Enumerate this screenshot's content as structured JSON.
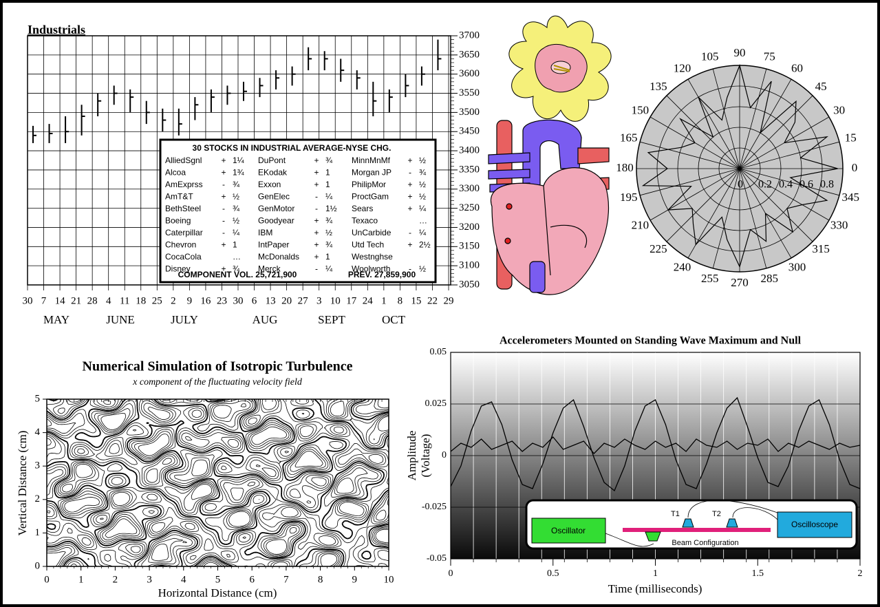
{
  "chart_data": [
    {
      "type": "stock",
      "title": "Industrials",
      "categories": [
        "30",
        "7",
        "14",
        "21",
        "28",
        "4",
        "11",
        "18",
        "25",
        "2",
        "9",
        "16",
        "23",
        "30",
        "6",
        "13",
        "20",
        "27",
        "3",
        "10",
        "17",
        "24",
        "1",
        "8",
        "15",
        "22",
        "29"
      ],
      "month_labels": [
        "MAY",
        "JUNE",
        "JULY",
        "AUG",
        "SEPT",
        "OCT"
      ],
      "high": [
        3465,
        3470,
        3490,
        3520,
        3550,
        3570,
        3560,
        3530,
        3510,
        3510,
        3540,
        3560,
        3570,
        3580,
        3590,
        3610,
        3620,
        3670,
        3660,
        3640,
        3610,
        3580,
        3560,
        3600,
        3620,
        3690,
        null
      ],
      "low": [
        3420,
        3420,
        3420,
        3440,
        3490,
        3520,
        3500,
        3470,
        3450,
        3440,
        3480,
        3500,
        3520,
        3530,
        3540,
        3560,
        3570,
        3610,
        3610,
        3580,
        3560,
        3490,
        3500,
        3540,
        3570,
        3610,
        null
      ],
      "close": [
        3440,
        3445,
        3450,
        3490,
        3530,
        3550,
        3540,
        3500,
        3480,
        3470,
        3520,
        3540,
        3550,
        3555,
        3570,
        3590,
        3600,
        3640,
        3640,
        3610,
        3590,
        3530,
        3540,
        3570,
        3600,
        3640,
        null
      ],
      "ylim": [
        3050,
        3700
      ],
      "yticks": [
        3050,
        3100,
        3150,
        3200,
        3250,
        3300,
        3350,
        3400,
        3450,
        3500,
        3550,
        3600,
        3650,
        3700
      ],
      "grid": true,
      "table": {
        "title": "30 STOCKS IN INDUSTRIAL AVERAGE-NYSE CHG.",
        "columns": [
          [
            {
              "name": "AlliedSgnl",
              "sign": "+",
              "change": "1¼"
            },
            {
              "name": "Alcoa",
              "sign": "+",
              "change": "1¾"
            },
            {
              "name": "AmExprss",
              "sign": "-",
              "change": "¾"
            },
            {
              "name": "AmT&T",
              "sign": "+",
              "change": "½"
            },
            {
              "name": "BethSteel",
              "sign": "-",
              "change": "¾"
            },
            {
              "name": "Boeing",
              "sign": "-",
              "change": "½"
            },
            {
              "name": "Caterpillar",
              "sign": "-",
              "change": "¼"
            },
            {
              "name": "Chevron",
              "sign": "+",
              "change": "1"
            },
            {
              "name": "CocaCola",
              "change": "…"
            },
            {
              "name": "Disney",
              "sign": "+",
              "change": "¾"
            }
          ],
          [
            {
              "name": "DuPont",
              "sign": "+",
              "change": "¾"
            },
            {
              "name": "EKodak",
              "sign": "+",
              "change": "1"
            },
            {
              "name": "Exxon",
              "sign": "+",
              "change": "1"
            },
            {
              "name": "GenElec",
              "sign": "-",
              "change": "¼"
            },
            {
              "name": "GenMotor",
              "sign": "-",
              "change": "1½"
            },
            {
              "name": "Goodyear",
              "sign": "+",
              "change": "¾"
            },
            {
              "name": "IBM",
              "sign": "+",
              "change": "½"
            },
            {
              "name": "IntPaper",
              "sign": "+",
              "change": "¾"
            },
            {
              "name": "McDonalds",
              "sign": "+",
              "change": "1"
            },
            {
              "name": "Merck",
              "sign": "-",
              "change": "¼"
            }
          ],
          [
            {
              "name": "MinnMnMf",
              "sign": "+",
              "change": "½"
            },
            {
              "name": "Morgan JP",
              "sign": "-",
              "change": "¾"
            },
            {
              "name": "PhilipMor",
              "sign": "+",
              "change": "½"
            },
            {
              "name": "ProctGam",
              "sign": "+",
              "change": "½"
            },
            {
              "name": "Sears",
              "sign": "+",
              "change": "¼"
            },
            {
              "name": "Texaco",
              "change": "…"
            },
            {
              "name": "UnCarbide",
              "sign": "-",
              "change": "¼"
            },
            {
              "name": "Utd Tech",
              "sign": "+",
              "change": "2½"
            },
            {
              "name": "Westnghse"
            },
            {
              "name": "Woolworth",
              "sign": "-",
              "change": "½"
            }
          ]
        ],
        "footer": [
          "COMPONENT VOL. 25,721,900",
          "PREV. 27,859,900"
        ]
      }
    },
    {
      "type": "polar",
      "thetaticks": [
        0,
        15,
        30,
        45,
        60,
        75,
        90,
        105,
        120,
        135,
        150,
        165,
        180,
        195,
        210,
        225,
        240,
        255,
        270,
        285,
        300,
        315,
        330,
        345
      ],
      "rticks": [
        0,
        0.2,
        0.4,
        0.6,
        0.8
      ],
      "rlim": [
        0,
        1
      ],
      "theta": [
        0,
        10,
        20,
        30,
        40,
        50,
        60,
        70,
        80,
        90,
        100,
        110,
        120,
        130,
        140,
        150,
        160,
        170,
        180,
        190,
        200,
        210,
        220,
        230,
        240,
        250,
        260,
        270,
        280,
        290,
        300,
        310,
        320,
        330,
        340,
        350
      ],
      "r": [
        0.95,
        0.6,
        0.9,
        0.5,
        0.7,
        0.85,
        0.4,
        0.9,
        0.6,
        1.0,
        0.7,
        0.5,
        0.8,
        0.4,
        0.75,
        0.5,
        0.6,
        0.9,
        0.7,
        0.95,
        0.5,
        0.8,
        0.6,
        0.7,
        0.85,
        0.5,
        0.7,
        0.95,
        0.6,
        0.75,
        0.5,
        0.8,
        0.6,
        0.7,
        0.9,
        0.5
      ]
    },
    {
      "type": "contour",
      "title": "Numerical Simulation of Isotropic Turbulence",
      "subtitle": "x component of the fluctuating velocity field",
      "xlabel": "Horizontal Distance (cm)",
      "ylabel": "Vertical Distance (cm)",
      "xlim": [
        0,
        10
      ],
      "ylim": [
        0,
        5
      ],
      "xticks": [
        0,
        1,
        2,
        3,
        4,
        5,
        6,
        7,
        8,
        9,
        10
      ],
      "yticks": [
        0,
        1,
        2,
        3,
        4,
        5
      ]
    },
    {
      "type": "line",
      "title": "Accelerometers Mounted on Standing Wave Maximum and Null",
      "xlabel": "Time (milliseconds)",
      "ylabel": [
        "Amplitude",
        "(Voltage)"
      ],
      "xlim": [
        0,
        2
      ],
      "ylim": [
        -0.05,
        0.05
      ],
      "xticks": [
        0,
        0.5,
        1,
        1.5,
        2
      ],
      "yticks": [
        -0.05,
        -0.025,
        0,
        0.025,
        0.05
      ],
      "x": [
        0,
        0.05,
        0.1,
        0.15,
        0.2,
        0.25,
        0.3,
        0.35,
        0.4,
        0.45,
        0.5,
        0.55,
        0.6,
        0.65,
        0.7,
        0.75,
        0.8,
        0.85,
        0.9,
        0.95,
        1,
        1.05,
        1.1,
        1.15,
        1.2,
        1.25,
        1.3,
        1.35,
        1.4,
        1.45,
        1.5,
        1.55,
        1.6,
        1.65,
        1.7,
        1.75,
        1.8,
        1.85,
        1.9,
        1.95,
        2
      ],
      "series": [
        {
          "color": "#000000",
          "values": [
            -0.015,
            -0.005,
            0.012,
            0.024,
            0.026,
            0.015,
            -0.002,
            -0.014,
            -0.016,
            -0.004,
            0.011,
            0.023,
            0.027,
            0.014,
            -0.001,
            -0.013,
            -0.017,
            -0.005,
            0.012,
            0.024,
            0.027,
            0.015,
            -0.002,
            -0.014,
            -0.016,
            -0.004,
            0.011,
            0.023,
            0.028,
            0.014,
            -0.001,
            -0.013,
            -0.015,
            -0.005,
            0.012,
            0.024,
            0.027,
            0.015,
            -0.002,
            -0.014,
            -0.016
          ]
        },
        {
          "color": "#000000",
          "values": [
            0.002,
            0.006,
            0.004,
            0.008,
            0.003,
            0.005,
            0.007,
            0.002,
            0.006,
            0.004,
            0.009,
            0.003,
            0.005,
            0.007,
            0.001,
            0.006,
            0.004,
            0.008,
            0.005,
            0.003,
            0.007,
            0.004,
            0.006,
            0.002,
            0.008,
            0.005,
            0.004,
            0.007,
            0.003,
            0.006,
            0.005,
            0.008,
            0.002,
            0.006,
            0.004,
            0.007,
            0.005,
            0.003,
            0.006,
            0.004,
            0.005
          ]
        }
      ],
      "inset": {
        "source": "Oscillator",
        "display": "Oscilloscope",
        "sensor_1": "T1",
        "sensor_2": "T2",
        "beam": "Beam Configuration"
      }
    }
  ]
}
